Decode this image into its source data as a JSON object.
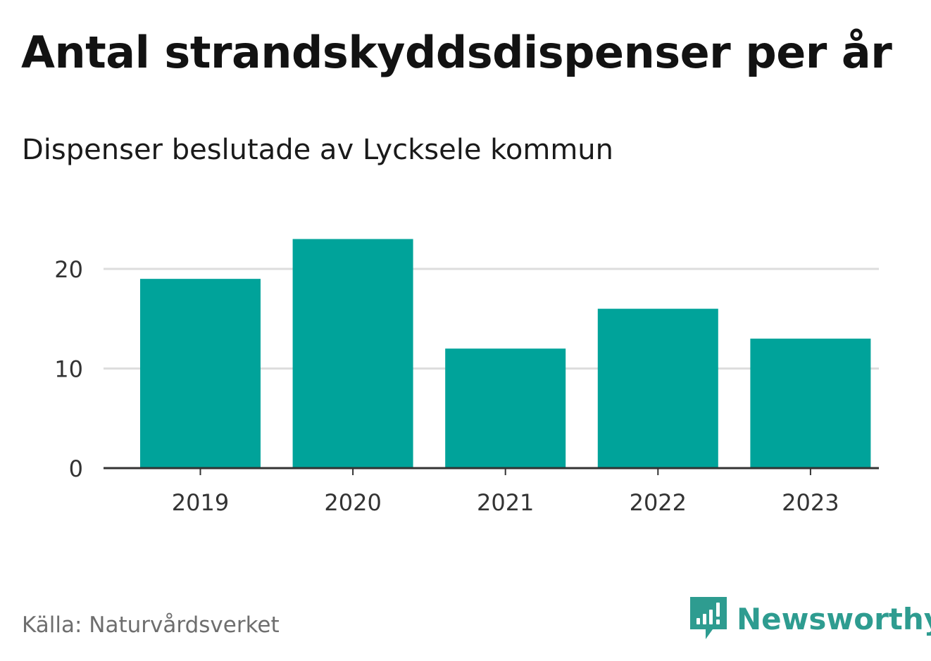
{
  "header": {
    "title": "Antal strandskyddsdispenser per år",
    "subtitle": "Dispenser beslutade av Lycksele kommun"
  },
  "footer": {
    "source": "Källa: Naturvårdsverket",
    "brand": "Newsworthy",
    "brand_icon": "newsworthy-logo-icon"
  },
  "colors": {
    "bar": "#00a39a",
    "grid": "#dddddd",
    "axis": "#333333",
    "tick_text": "#333333",
    "brand": "#2e9c90"
  },
  "chart_data": {
    "type": "bar",
    "title": "Antal strandskyddsdispenser per år",
    "subtitle": "Dispenser beslutade av Lycksele kommun",
    "categories": [
      "2019",
      "2020",
      "2021",
      "2022",
      "2023"
    ],
    "values": [
      19,
      23,
      12,
      16,
      13
    ],
    "xlabel": "",
    "ylabel": "",
    "ylim": [
      0,
      20
    ],
    "yticks": [
      0,
      10,
      20
    ],
    "grid": true,
    "legend": "none"
  }
}
